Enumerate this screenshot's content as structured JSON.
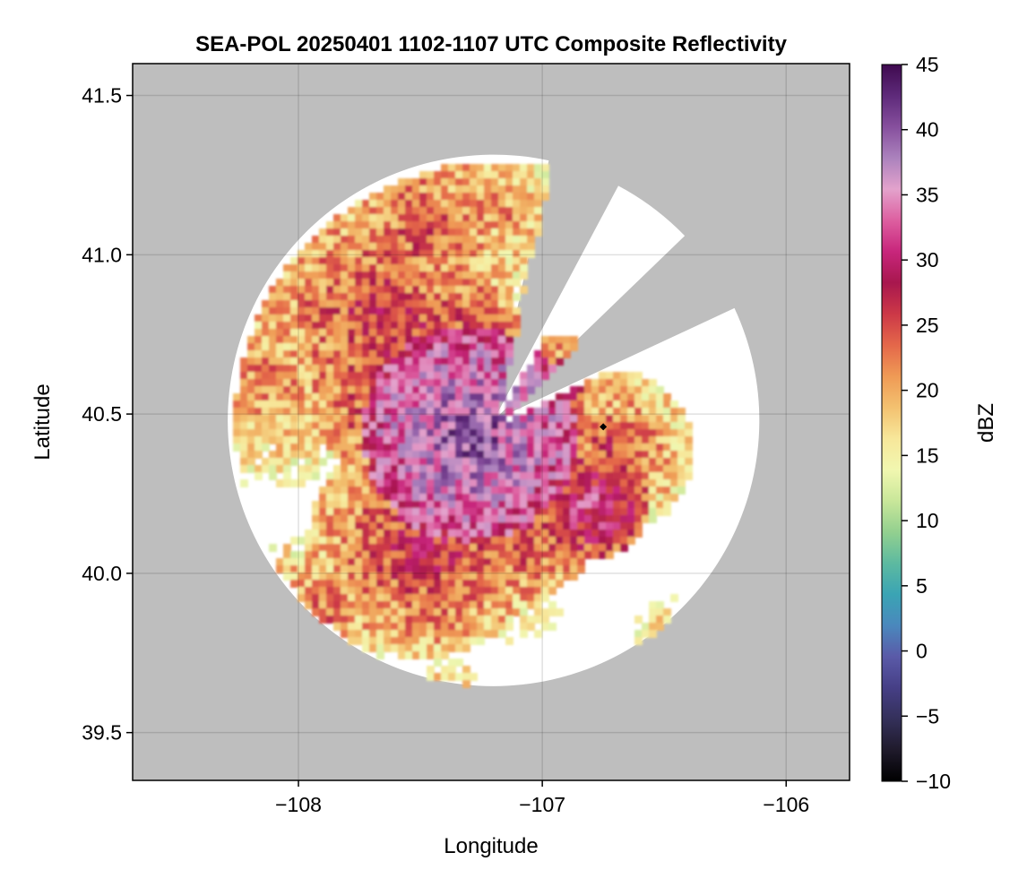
{
  "chart_data": {
    "type": "heatmap",
    "title": "SEA-POL 20250401 1102-1107 UTC Composite Reflectivity",
    "xlabel": "Longitude",
    "ylabel": "Latitude",
    "xlim": [
      -108.68,
      -105.74
    ],
    "ylim": [
      39.35,
      41.6
    ],
    "xticks": [
      {
        "value": -108,
        "label": "−108"
      },
      {
        "value": -107,
        "label": "−107"
      },
      {
        "value": -106,
        "label": "−106"
      }
    ],
    "yticks": [
      {
        "value": 39.5,
        "label": "39.5"
      },
      {
        "value": 40.0,
        "label": "40.0"
      },
      {
        "value": 40.5,
        "label": "40.5"
      },
      {
        "value": 41.0,
        "label": "41.0"
      },
      {
        "value": 41.5,
        "label": "41.5"
      }
    ],
    "grid": true,
    "colorbar": {
      "label": "dBZ",
      "range": [
        -10,
        45
      ],
      "ticks": [
        {
          "value": 45,
          "label": "45"
        },
        {
          "value": 40,
          "label": "40"
        },
        {
          "value": 35,
          "label": "35"
        },
        {
          "value": 30,
          "label": "30"
        },
        {
          "value": 25,
          "label": "25"
        },
        {
          "value": 20,
          "label": "20"
        },
        {
          "value": 15,
          "label": "15"
        },
        {
          "value": 10,
          "label": "10"
        },
        {
          "value": 5,
          "label": "5"
        },
        {
          "value": 0,
          "label": "0"
        },
        {
          "value": -5,
          "label": "−5"
        },
        {
          "value": -10,
          "label": "−10"
        }
      ],
      "colormap": [
        "#000000",
        "#1f1a2b",
        "#34305a",
        "#463f86",
        "#5a5aa8",
        "#4a88bd",
        "#3aa4b4",
        "#5dbaa0",
        "#93d08f",
        "#c9e79a",
        "#f1f7b0",
        "#f7e79a",
        "#f3c170",
        "#ef9a55",
        "#e4674a",
        "#cc3847",
        "#a8174e",
        "#c8267c",
        "#dd5fa0",
        "#e3a2cc",
        "#ab82bd",
        "#864f9d",
        "#5e2a7a",
        "#3f0a4f"
      ]
    },
    "radar_site": {
      "lon": -106.75,
      "lat": 40.46
    },
    "coverage": {
      "center_lon": -107.2,
      "center_lat": 40.48,
      "radius_deg": 1.09
    },
    "blocked_sectors_deg": [
      [
        12,
        28
      ],
      [
        46,
        65
      ]
    ],
    "background_color": "#bebebe"
  }
}
